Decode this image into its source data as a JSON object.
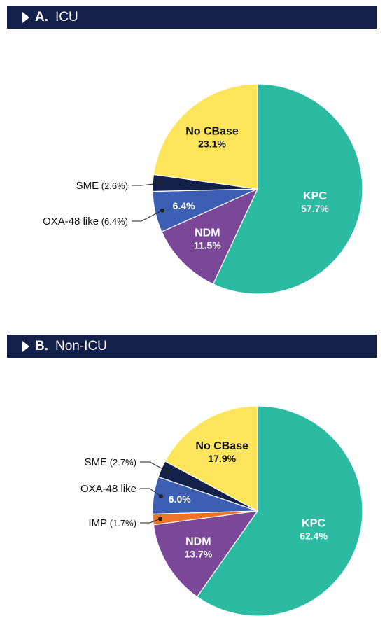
{
  "panels": [
    {
      "letter": "A.",
      "name": "ICU"
    },
    {
      "letter": "B.",
      "name": "Non-ICU"
    }
  ],
  "chart_data": [
    {
      "type": "pie",
      "title": "A. ICU",
      "colors": {
        "KPC": "#2bbba3",
        "No CBase": "#fde55b",
        "SME": "#13204a",
        "OXA-48 like": "#3d5fb3",
        "NDM": "#7b4799"
      },
      "slices": [
        {
          "label": "KPC",
          "value": 57.7,
          "display": "57.7%",
          "inside": true
        },
        {
          "label": "NDM",
          "value": 11.5,
          "display": "11.5%",
          "inside": true
        },
        {
          "label": "OXA-48 like",
          "value": 6.4,
          "display": "6.4%",
          "inside": true,
          "inside_label": "6.4%",
          "external": "OXA-48 like",
          "external_value": "(6.4%)"
        },
        {
          "label": "SME",
          "value": 2.6,
          "display": "2.6%",
          "inside": false,
          "external": "SME",
          "external_value": "(2.6%)"
        },
        {
          "label": "No CBase",
          "value": 23.1,
          "display": "23.1%",
          "inside": true
        }
      ]
    },
    {
      "type": "pie",
      "title": "B. Non-ICU",
      "colors": {
        "KPC": "#2bbba3",
        "No CBase": "#fde55b",
        "SME": "#13204a",
        "OXA-48 like": "#3d5fb3",
        "IMP": "#ee7328",
        "NDM": "#7b4799"
      },
      "slices": [
        {
          "label": "KPC",
          "value": 62.4,
          "display": "62.4%",
          "inside": true
        },
        {
          "label": "NDM",
          "value": 13.7,
          "display": "13.7%",
          "inside": true
        },
        {
          "label": "IMP",
          "value": 1.7,
          "display": "1.7%",
          "inside": false,
          "external": "IMP",
          "external_value": "(1.7%)"
        },
        {
          "label": "OXA-48 like",
          "value": 6.0,
          "display": "6.0%",
          "inside": true,
          "inside_label": "6.0%",
          "external": "OXA-48 like",
          "external_value": ""
        },
        {
          "label": "SME",
          "value": 2.7,
          "display": "2.7%",
          "inside": false,
          "external": "SME",
          "external_value": "(2.7%)"
        },
        {
          "label": "No CBase",
          "value": 17.9,
          "display": "17.9%",
          "inside": true
        }
      ]
    }
  ]
}
